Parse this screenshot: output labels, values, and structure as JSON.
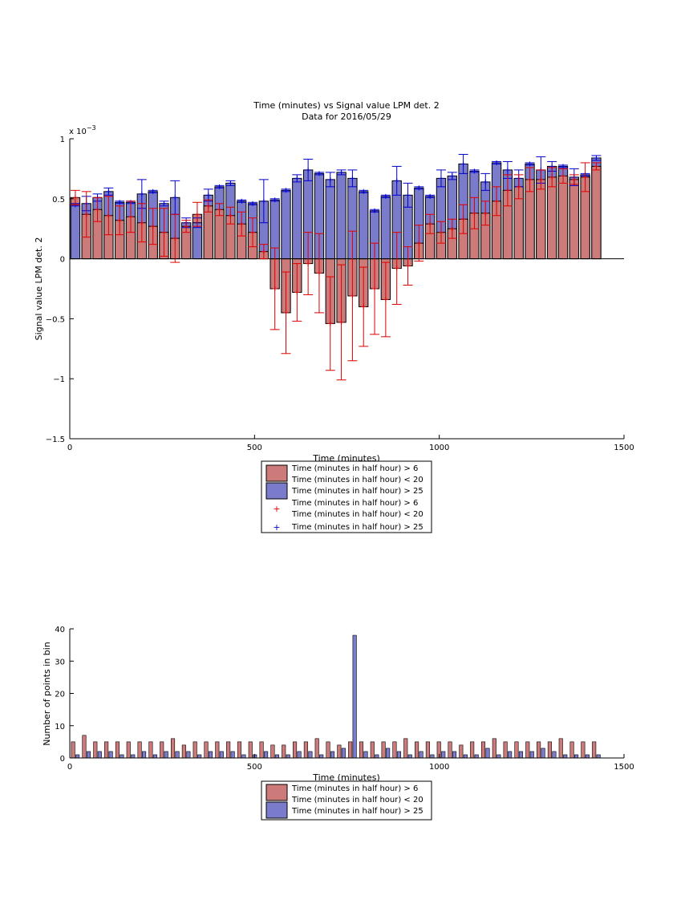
{
  "chart_data": [
    {
      "type": "bar",
      "title": "Time (minutes) vs Signal value LPM det. 2",
      "subtitle": "Data for 2016/05/29",
      "xlabel": "Time (minutes)",
      "ylabel": "Signal value LPM det. 2",
      "y_exponent_label": "x 10",
      "y_exponent_power": "−3",
      "xlim": [
        0,
        1500
      ],
      "ylim": [
        -1.5,
        1
      ],
      "x_ticks": [
        "0",
        "500",
        "1000",
        "1500"
      ],
      "y_ticks": [
        "−1.5",
        "−1",
        "−0.5",
        "0",
        "0.5",
        "1"
      ],
      "legend_position": "below",
      "legend": [
        {
          "label_line1": "Time (minutes in half hour) > 6",
          "label_line2": "Time (minutes in half hour) < 20"
        },
        {
          "label_line1": "Time (minutes in half hour) > 25",
          "label_line2": ""
        },
        {
          "label_line1": "Time (minutes in half hour) > 6",
          "label_line2": "Time (minutes in half hour) < 20"
        },
        {
          "label_line1": "Time (minutes in half hour) > 25",
          "label_line2": ""
        }
      ],
      "colors": {
        "series1": "#cc7a7a",
        "series2": "#7b7bcc",
        "err1": "#dd0000",
        "err2": "#0000cc"
      },
      "x": [
        15,
        45,
        75,
        105,
        135,
        165,
        195,
        225,
        255,
        285,
        315,
        345,
        375,
        405,
        435,
        465,
        495,
        525,
        555,
        585,
        615,
        645,
        675,
        705,
        735,
        765,
        795,
        825,
        855,
        885,
        915,
        945,
        975,
        1005,
        1035,
        1065,
        1095,
        1125,
        1155,
        1185,
        1215,
        1245,
        1275,
        1305,
        1335,
        1365,
        1395,
        1425
      ],
      "series": [
        {
          "name": "Time (minutes in half hour) > 6 / < 20",
          "values": [
            0.51,
            0.37,
            0.41,
            0.36,
            0.32,
            0.35,
            0.3,
            0.27,
            0.22,
            0.17,
            0.27,
            0.37,
            0.44,
            0.41,
            0.36,
            0.29,
            0.22,
            0.06,
            -0.25,
            -0.45,
            -0.28,
            -0.04,
            -0.12,
            -0.54,
            -0.53,
            -0.31,
            -0.4,
            -0.25,
            -0.34,
            -0.08,
            -0.06,
            0.13,
            0.29,
            0.22,
            0.25,
            0.33,
            0.38,
            0.38,
            0.48,
            0.57,
            0.6,
            0.66,
            0.66,
            0.68,
            0.69,
            0.66,
            0.68,
            0.77
          ],
          "err": [
            0.06,
            0.19,
            0.1,
            0.16,
            0.12,
            0.13,
            0.16,
            0.15,
            0.2,
            0.2,
            0.05,
            0.1,
            0.05,
            0.05,
            0.07,
            0.1,
            0.12,
            0.06,
            0.34,
            0.34,
            0.24,
            0.26,
            0.33,
            0.39,
            0.48,
            0.54,
            0.33,
            0.38,
            0.31,
            0.3,
            0.16,
            0.15,
            0.08,
            0.09,
            0.08,
            0.12,
            0.13,
            0.1,
            0.12,
            0.13,
            0.1,
            0.1,
            0.08,
            0.08,
            0.06,
            0.04,
            0.12,
            0.03
          ]
        },
        {
          "name": "Time (minutes in half hour) > 25",
          "values": [
            0.45,
            0.46,
            0.51,
            0.56,
            0.47,
            0.47,
            0.54,
            0.56,
            0.46,
            0.51,
            0.3,
            0.3,
            0.53,
            0.6,
            0.63,
            0.48,
            0.46,
            0.48,
            0.49,
            0.57,
            0.67,
            0.74,
            0.71,
            0.66,
            0.72,
            0.67,
            0.56,
            0.4,
            0.52,
            0.65,
            0.53,
            0.59,
            0.52,
            0.67,
            0.69,
            0.79,
            0.73,
            0.64,
            0.8,
            0.74,
            0.67,
            0.79,
            0.74,
            0.77,
            0.77,
            0.68,
            0.7,
            0.84
          ],
          "err": [
            0.01,
            0.06,
            0.03,
            0.03,
            0.01,
            0.01,
            0.12,
            0.01,
            0.02,
            0.14,
            0.04,
            0.04,
            0.05,
            0.01,
            0.02,
            0.01,
            0.01,
            0.18,
            0.01,
            0.01,
            0.03,
            0.09,
            0.01,
            0.06,
            0.02,
            0.07,
            0.01,
            0.01,
            0.01,
            0.12,
            0.1,
            0.01,
            0.01,
            0.07,
            0.03,
            0.08,
            0.01,
            0.07,
            0.01,
            0.07,
            0.07,
            0.01,
            0.11,
            0.04,
            0.01,
            0.07,
            0.01,
            0.02
          ]
        }
      ]
    },
    {
      "type": "bar",
      "xlabel": "Time (minutes)",
      "ylabel": "Number of points in bin",
      "xlim": [
        0,
        1500
      ],
      "ylim": [
        0,
        40
      ],
      "x_ticks": [
        "0",
        "500",
        "1000",
        "1500"
      ],
      "y_ticks": [
        "0",
        "10",
        "20",
        "30",
        "40"
      ],
      "legend_position": "below",
      "legend": [
        {
          "label_line1": "Time (minutes in half hour) > 6",
          "label_line2": "Time (minutes in half hour) < 20"
        },
        {
          "label_line1": "Time (minutes in half hour) > 25",
          "label_line2": ""
        }
      ],
      "x": [
        15,
        45,
        75,
        105,
        135,
        165,
        195,
        225,
        255,
        285,
        315,
        345,
        375,
        405,
        435,
        465,
        495,
        525,
        555,
        585,
        615,
        645,
        675,
        705,
        735,
        765,
        795,
        825,
        855,
        885,
        915,
        945,
        975,
        1005,
        1035,
        1065,
        1095,
        1125,
        1155,
        1185,
        1215,
        1245,
        1275,
        1305,
        1335,
        1365,
        1395,
        1425
      ],
      "series": [
        {
          "name": "Time (minutes in half hour) > 6 / < 20",
          "values": [
            5,
            7,
            5,
            5,
            5,
            5,
            5,
            5,
            5,
            6,
            4,
            5,
            5,
            5,
            5,
            5,
            5,
            5,
            4,
            4,
            5,
            5,
            6,
            5,
            4,
            5,
            5,
            5,
            5,
            5,
            6,
            5,
            5,
            5,
            5,
            4,
            5,
            5,
            6,
            5,
            5,
            5,
            5,
            5,
            6,
            5,
            5,
            5
          ]
        },
        {
          "name": "Time (minutes in half hour) > 25",
          "values": [
            1,
            2,
            2,
            2,
            1,
            1,
            2,
            1,
            2,
            2,
            2,
            1,
            2,
            2,
            2,
            1,
            1,
            2,
            1,
            1,
            2,
            2,
            1,
            2,
            3,
            38,
            2,
            1,
            3,
            2,
            1,
            2,
            1,
            2,
            2,
            1,
            1,
            3,
            1,
            2,
            2,
            2,
            3,
            2,
            1,
            1,
            1,
            1
          ]
        }
      ]
    }
  ]
}
